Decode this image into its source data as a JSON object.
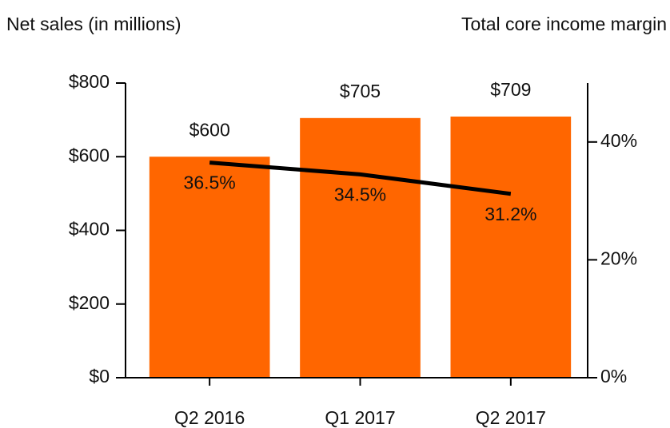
{
  "chart_data": {
    "type": "bar",
    "ylabel": "Net sales (in millions)",
    "y2label": "Total core income margin",
    "categories": [
      "Q2 2016",
      "Q1 2017",
      "Q2 2017"
    ],
    "series": [
      {
        "type": "bar",
        "color": "#ff6600",
        "values": [
          600,
          705,
          709
        ],
        "value_labels": [
          "$600",
          "$705",
          "$709"
        ]
      },
      {
        "type": "line",
        "axis": "y2",
        "color": "#000000",
        "values": [
          36.5,
          34.5,
          31.2
        ],
        "value_labels": [
          "36.5%",
          "34.5%",
          "31.2%"
        ]
      }
    ],
    "ylim": [
      0,
      800
    ],
    "yticks": [
      {
        "value": 0,
        "label": "$0"
      },
      {
        "value": 200,
        "label": "$200"
      },
      {
        "value": 400,
        "label": "$400"
      },
      {
        "value": 600,
        "label": "$600"
      },
      {
        "value": 800,
        "label": "$800"
      }
    ],
    "y2lim": [
      0,
      50
    ],
    "y2ticks": [
      {
        "value": 0,
        "label": "0%"
      },
      {
        "value": 20,
        "label": "20%"
      },
      {
        "value": 40,
        "label": "40%"
      }
    ],
    "grid": false
  }
}
